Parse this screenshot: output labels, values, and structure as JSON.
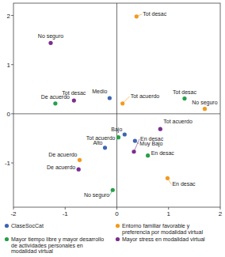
{
  "chart_data": {
    "type": "scatter",
    "xlim": [
      -2,
      2
    ],
    "xticks": [
      -2,
      -1,
      0,
      1,
      2
    ],
    "ylim": [
      -1.9,
      2.25
    ],
    "yticks": [
      -1,
      0,
      1,
      2
    ],
    "grid": false,
    "legend": "bottom",
    "marker": "circle",
    "series": [
      {
        "name": "ClaseSocCat",
        "color": "#3d66b1",
        "labels": [
          "Medio",
          "Bajo",
          "Alto",
          "Muy Bajo"
        ],
        "x": [
          -0.14,
          0.15,
          -0.23,
          0.35
        ],
        "values": [
          0.32,
          -0.42,
          -0.69,
          -0.55
        ]
      },
      {
        "name": "Entorno familiar favorable y preferencia por modalidad virtual",
        "color": "#f39a1f",
        "labels": [
          "Tot desac",
          "Tot acuerdo",
          "No seguro",
          "De acuerdo",
          "En desac"
        ],
        "x": [
          0.38,
          0.11,
          1.7,
          -0.72,
          0.98
        ],
        "values": [
          1.98,
          0.21,
          0.1,
          -0.94,
          -1.31
        ]
      },
      {
        "name": "Mayor tiempo libre y mayor desarrollo de actividades personales en modalidad virtual",
        "color": "#26a048",
        "labels": [
          "De acuerdo",
          "Tot desac",
          "Tot acuerdo",
          "En desac",
          "No seguro"
        ],
        "x": [
          -1.19,
          1.31,
          0.03,
          0.6,
          -0.08
        ],
        "values": [
          0.21,
          0.31,
          -0.48,
          -0.85,
          -1.55
        ]
      },
      {
        "name": "Mayor stress en modalidad virtual",
        "color": "#7b2e8f",
        "labels": [
          "No seguro",
          "Tot desac",
          "Tot acuerdo",
          "En desac",
          "De acuerdo"
        ],
        "x": [
          -1.28,
          -0.83,
          0.84,
          0.33,
          -0.74
        ],
        "values": [
          1.44,
          0.27,
          -0.31,
          -0.77,
          -1.13
        ]
      }
    ]
  }
}
